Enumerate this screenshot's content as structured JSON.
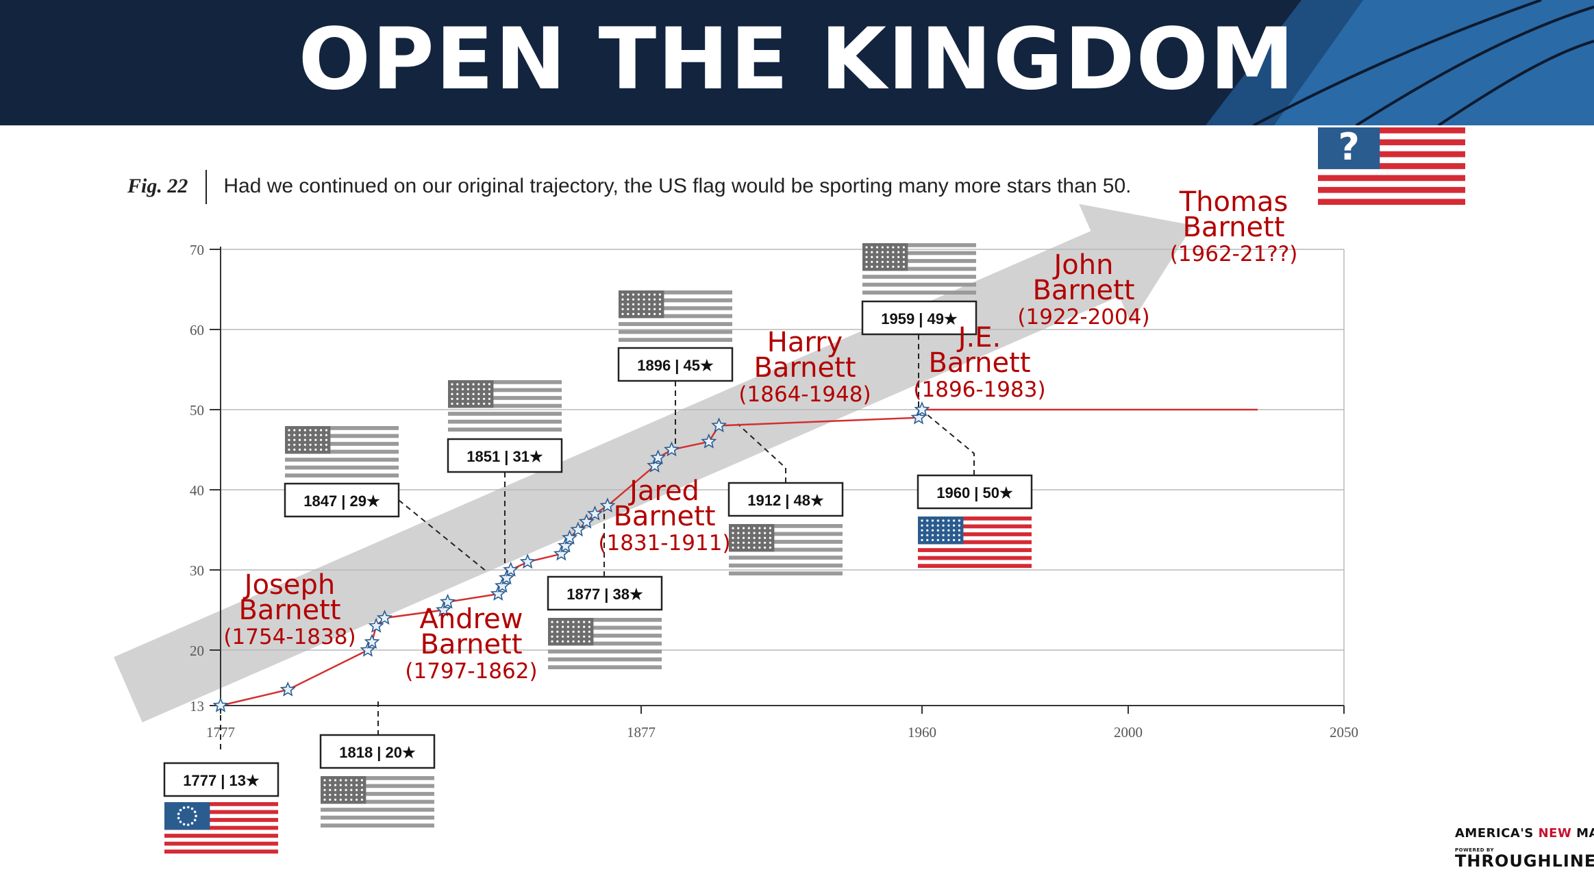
{
  "banner": {
    "title": "OPEN THE KINGDOM"
  },
  "caption": {
    "fig": "Fig. 22",
    "text": "Had we continued on our original trajectory, the US flag would be sporting many more stars than 50."
  },
  "colors": {
    "banner": "#13243f",
    "series_line": "#d32f2f",
    "annotation_text": "#b30000",
    "trend_arrow": "#d0d0d0",
    "flag_red": "#d52b35",
    "flag_blue": "#2b5c8f",
    "flag_gray": "#6d6d6d"
  },
  "chart_data": {
    "type": "line",
    "title": "",
    "xlabel": "",
    "ylabel": "",
    "xlim": [
      1777,
      2050
    ],
    "ylim": [
      13,
      70
    ],
    "x_ticks": [
      1777,
      1877,
      1960,
      2000,
      2050
    ],
    "y_ticks": [
      13,
      20,
      30,
      40,
      50,
      60,
      70
    ],
    "grid": true,
    "series": [
      {
        "points": [
          [
            1777,
            13
          ],
          [
            1793,
            15
          ],
          [
            1812,
            20
          ],
          [
            1813,
            21
          ],
          [
            1814,
            23
          ],
          [
            1816,
            24
          ],
          [
            1830,
            25
          ],
          [
            1831,
            26
          ],
          [
            1843,
            27
          ],
          [
            1844,
            28
          ],
          [
            1845,
            29
          ],
          [
            1846,
            30
          ],
          [
            1850,
            31
          ],
          [
            1858,
            32
          ],
          [
            1859,
            33
          ],
          [
            1860,
            34
          ],
          [
            1862,
            35
          ],
          [
            1864,
            36
          ],
          [
            1866,
            37
          ],
          [
            1869,
            38
          ],
          [
            1881,
            43
          ],
          [
            1882,
            44
          ],
          [
            1886,
            45
          ],
          [
            1897,
            46
          ],
          [
            1900,
            48
          ],
          [
            1959,
            49
          ],
          [
            1960,
            50
          ],
          [
            2030,
            50
          ]
        ]
      }
    ],
    "trend_arrow": {
      "from": [
        1755,
        15
      ],
      "to": [
        2015,
        73
      ]
    },
    "flag_callouts": [
      {
        "label": "1777 | 13★",
        "x": 1777,
        "y": 13,
        "flag": "betsy-ross"
      },
      {
        "label": "1818 | 20★",
        "x": 1812,
        "y": 20,
        "flag": "gray"
      },
      {
        "label": "1847 | 29★",
        "x": 1845,
        "y": 29,
        "flag": "gray"
      },
      {
        "label": "1851 | 31★",
        "x": 1850,
        "y": 31,
        "flag": "gray"
      },
      {
        "label": "1877 | 38★",
        "x": 1869,
        "y": 38,
        "flag": "gray"
      },
      {
        "label": "1896 | 45★",
        "x": 1886,
        "y": 45,
        "flag": "gray"
      },
      {
        "label": "1912 | 48★",
        "x": 1900,
        "y": 48,
        "flag": "gray"
      },
      {
        "label": "1959 | 49★",
        "x": 1959,
        "y": 49,
        "flag": "gray"
      },
      {
        "label": "1960 | 50★",
        "x": 1960,
        "y": 50,
        "flag": "color"
      }
    ],
    "annotations": [
      {
        "lines": [
          "Joseph",
          "Barnett",
          "(1754-1838)"
        ]
      },
      {
        "lines": [
          "Andrew",
          "Barnett",
          "(1797-1862)"
        ]
      },
      {
        "lines": [
          "Jared",
          "Barnett",
          "(1831-1911)"
        ]
      },
      {
        "lines": [
          "Harry",
          "Barnett",
          "(1864-1948)"
        ]
      },
      {
        "lines": [
          "J.E.",
          "Barnett",
          "(1896-1983)"
        ]
      },
      {
        "lines": [
          "John",
          "Barnett",
          "(1922-2004)"
        ]
      },
      {
        "lines": [
          "Thomas",
          "Barnett",
          "(1962-21??)"
        ]
      }
    ],
    "future_flag": {
      "symbol": "?"
    }
  },
  "logo": {
    "line1a": "AMERICA'S ",
    "line1b": "NEW",
    "line1c": " MAP",
    "line2": "POWERED BY",
    "line3": "THROUGHLINE"
  }
}
